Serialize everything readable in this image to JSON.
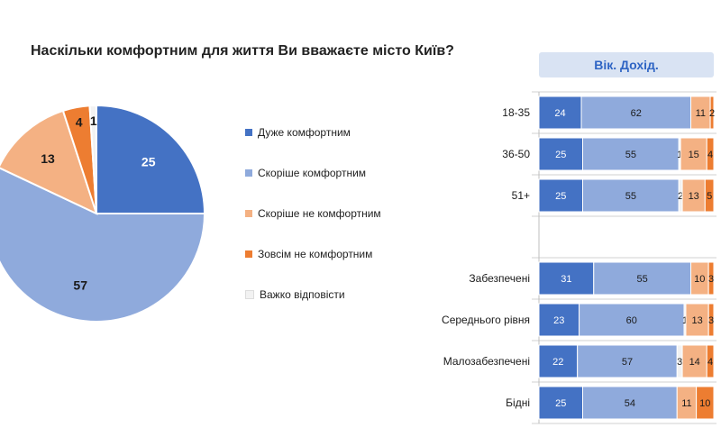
{
  "question": "Наскільки комфортним для життя Ви вважаєте місто Київ?",
  "panel_header": "Вік. Дохід.",
  "colors": {
    "very_comfortable": "#4472c4",
    "rather_comfortable": "#8faadc",
    "rather_not": "#f4b183",
    "not_at_all": "#ed7d31",
    "hard_to_say": "#f2f2f2"
  },
  "chart_data": [
    {
      "type": "pie",
      "title": "Наскільки комфортним для життя Ви вважаєте місто Київ?",
      "legend_position": "right",
      "slices": [
        {
          "label": "Дуже комфортним",
          "value": 25,
          "color": "#4472c4"
        },
        {
          "label": "Скоріше комфортним",
          "value": 57,
          "color": "#8faadc"
        },
        {
          "label": "Скоріше не комфортним",
          "value": 13,
          "color": "#f4b183"
        },
        {
          "label": "Зовсім не комфортним",
          "value": 4,
          "color": "#ed7d31"
        },
        {
          "label": "Важко відповісти",
          "value": 1,
          "color": "#f2f2f2"
        }
      ]
    },
    {
      "type": "bar",
      "orientation": "horizontal",
      "stacked": true,
      "title": "Вік. Дохід.",
      "xlim": [
        0,
        100
      ],
      "categories": [
        "18-35",
        "36-50",
        "51+",
        "Забезпечені",
        "Середнього рівня",
        "Малозабезпечені",
        "Бідні"
      ],
      "series": [
        {
          "name": "Дуже комфортним",
          "values": [
            24,
            25,
            25,
            31,
            23,
            22,
            25
          ]
        },
        {
          "name": "Скоріше комфортним",
          "values": [
            62,
            55,
            55,
            55,
            60,
            57,
            54
          ]
        },
        {
          "name": "Важко відповісти",
          "values": [
            0,
            1,
            2,
            0,
            1,
            3,
            0
          ]
        },
        {
          "name": "Скоріше не комфортним",
          "values": [
            11,
            15,
            13,
            10,
            13,
            14,
            11
          ]
        },
        {
          "name": "Зовсім не комфортним",
          "values": [
            2,
            4,
            5,
            3,
            3,
            4,
            10
          ]
        }
      ],
      "value_labels": [
        [
          "24",
          "62",
          "",
          "11",
          "2"
        ],
        [
          "25",
          "55",
          "1",
          "15",
          "4"
        ],
        [
          "25",
          "55",
          "2",
          "13",
          "5"
        ],
        [
          "31",
          "55",
          "",
          "10",
          "3"
        ],
        [
          "23",
          "60",
          "1",
          "13",
          "3"
        ],
        [
          "22",
          "57",
          "3",
          "14",
          "4"
        ],
        [
          "25",
          "54",
          "",
          "11",
          "10"
        ]
      ]
    }
  ]
}
